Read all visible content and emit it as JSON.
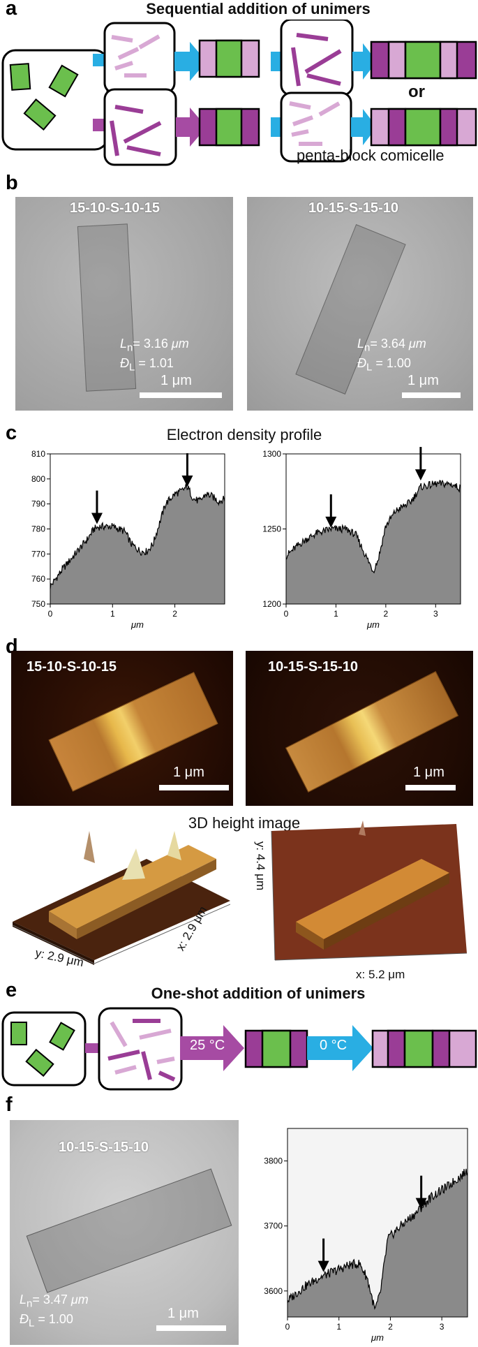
{
  "colors": {
    "core_green": "#6bbf4d",
    "dark_purple": "#9a3d96",
    "light_purple": "#d8a8d4",
    "arrow_cyan": "#29aee3",
    "arrow_purple": "#a64ba3",
    "profile_fill": "#8a8a8a"
  },
  "panel_a": {
    "letter": "a",
    "title": "Sequential addition of unimers",
    "or_label": "or",
    "caption": "penta-block comicelle"
  },
  "panel_b": {
    "letter": "b",
    "left": {
      "label": "15-10-S-10-15",
      "ln_sym": "L",
      "ln_sub": "n",
      "ln_val": "= 3.16 ",
      "ln_unit": "μm",
      "d_sym": "Đ",
      "d_sub": "L",
      "d_val": " = 1.01",
      "scale": "1 μm"
    },
    "right": {
      "label": "10-15-S-15-10",
      "ln_sym": "L",
      "ln_sub": "n",
      "ln_val": "= 3.64 ",
      "ln_unit": "μm",
      "d_sym": "Đ",
      "d_sub": "L",
      "d_val": " = 1.00",
      "scale": "1 μm"
    }
  },
  "panel_c": {
    "letter": "c",
    "title": "Electron density profile"
  },
  "panel_d": {
    "letter": "d",
    "left_label": "15-10-S-10-15",
    "right_label": "10-15-S-15-10",
    "left_scale": "1 μm",
    "right_scale": "1 μm",
    "height_title": "3D height image",
    "left_3d_x": "x: 2.9 μm",
    "left_3d_y": "y: 2.9 μm",
    "right_3d_x": "x: 5.2 μm",
    "right_3d_y": "y: 4.4 μm"
  },
  "panel_e": {
    "letter": "e",
    "title": "One-shot addition of unimers",
    "temp1": "25 °C",
    "temp2": "0 °C"
  },
  "panel_f": {
    "letter": "f",
    "label": "10-15-S-15-10",
    "ln_sym": "L",
    "ln_sub": "n",
    "ln_val": "= 3.47 ",
    "ln_unit": "μm",
    "d_sym": "Đ",
    "d_sub": "L",
    "d_val": " = 1.00",
    "scale": "1 μm"
  },
  "chart_data": [
    {
      "type": "area",
      "id": "c-left",
      "xlabel": "μm",
      "xlim": [
        0,
        2.8
      ],
      "ylim": [
        750,
        810
      ],
      "xticks": [
        0,
        1,
        2
      ],
      "yticks": [
        750,
        760,
        770,
        780,
        790,
        800,
        810
      ],
      "profile_points": [
        [
          0,
          757
        ],
        [
          0.2,
          764
        ],
        [
          0.4,
          770
        ],
        [
          0.6,
          776
        ],
        [
          0.7,
          780
        ],
        [
          0.8,
          781
        ],
        [
          1.0,
          781
        ],
        [
          1.2,
          779
        ],
        [
          1.3,
          774
        ],
        [
          1.45,
          771
        ],
        [
          1.55,
          771
        ],
        [
          1.65,
          774
        ],
        [
          1.75,
          782
        ],
        [
          1.85,
          790
        ],
        [
          2.0,
          794
        ],
        [
          2.1,
          795
        ],
        [
          2.2,
          797
        ],
        [
          2.3,
          792
        ],
        [
          2.4,
          791
        ],
        [
          2.5,
          794
        ],
        [
          2.6,
          793
        ],
        [
          2.7,
          791
        ],
        [
          2.8,
          792
        ]
      ],
      "arrows_at": [
        0.75,
        2.2
      ],
      "grid": false
    },
    {
      "type": "area",
      "id": "c-right",
      "xlabel": "μm",
      "xlim": [
        0,
        3.5
      ],
      "ylim": [
        1200,
        1300
      ],
      "xticks": [
        0,
        1,
        2,
        3
      ],
      "yticks": [
        1200,
        1250,
        1300
      ],
      "profile_points": [
        [
          0,
          1232
        ],
        [
          0.2,
          1238
        ],
        [
          0.4,
          1243
        ],
        [
          0.6,
          1247
        ],
        [
          0.9,
          1250
        ],
        [
          1.2,
          1250
        ],
        [
          1.4,
          1246
        ],
        [
          1.6,
          1232
        ],
        [
          1.75,
          1222
        ],
        [
          1.85,
          1230
        ],
        [
          2.0,
          1252
        ],
        [
          2.2,
          1262
        ],
        [
          2.5,
          1268
        ],
        [
          2.7,
          1278
        ],
        [
          3.0,
          1280
        ],
        [
          3.3,
          1280
        ],
        [
          3.5,
          1277
        ]
      ],
      "arrows_at": [
        0.9,
        2.7
      ],
      "grid": false
    },
    {
      "type": "area",
      "id": "f-right",
      "xlabel": "μm",
      "xlim": [
        0,
        3.5
      ],
      "ylim": [
        3560,
        3850
      ],
      "xticks": [
        0,
        1,
        2,
        3
      ],
      "yticks": [
        3600,
        3700,
        3800
      ],
      "profile_points": [
        [
          0,
          3585
        ],
        [
          0.3,
          3605
        ],
        [
          0.6,
          3620
        ],
        [
          0.9,
          3630
        ],
        [
          1.2,
          3640
        ],
        [
          1.4,
          3642
        ],
        [
          1.55,
          3620
        ],
        [
          1.7,
          3570
        ],
        [
          1.8,
          3595
        ],
        [
          1.95,
          3680
        ],
        [
          2.2,
          3700
        ],
        [
          2.5,
          3720
        ],
        [
          2.8,
          3745
        ],
        [
          3.1,
          3760
        ],
        [
          3.5,
          3785
        ]
      ],
      "arrows_at": [
        0.7,
        2.6
      ],
      "grid": false
    }
  ]
}
